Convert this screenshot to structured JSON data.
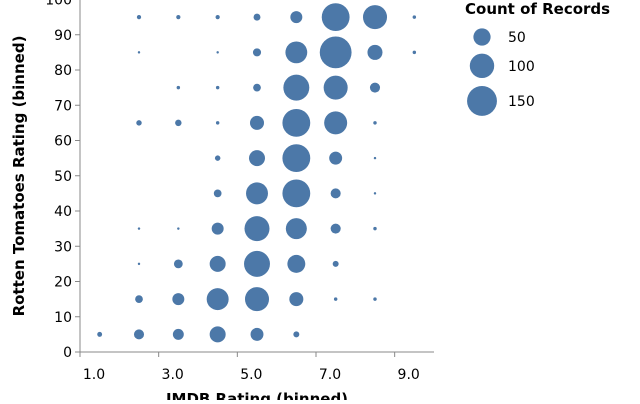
{
  "chart_data": {
    "type": "scatter",
    "x_label": "IMDB Rating (binned)",
    "y_label": "Rotten Tomatoes Rating (binned)",
    "size_label": "Count of Records",
    "color": "#4c78a8",
    "xlim": [
      1,
      10
    ],
    "ylim": [
      0,
      100
    ],
    "xticks": [
      {
        "value": 1,
        "label": "1.0"
      },
      {
        "value": 3,
        "label": "3.0"
      },
      {
        "value": 5,
        "label": "5.0"
      },
      {
        "value": 7,
        "label": "7.0"
      },
      {
        "value": 9,
        "label": "9.0"
      }
    ],
    "yticks": [
      0,
      10,
      20,
      30,
      40,
      50,
      60,
      70,
      80,
      90,
      100
    ],
    "size_legend": [
      50,
      100,
      150
    ],
    "x": [
      2.5,
      3.5,
      4.5,
      5.5,
      6.5,
      7.5,
      8.5,
      9.5,
      2.5,
      4.5,
      5.5,
      6.5,
      7.5,
      8.5,
      9.5,
      3.5,
      4.5,
      5.5,
      6.5,
      7.5,
      8.5,
      2.5,
      3.5,
      4.5,
      5.5,
      6.5,
      7.5,
      8.5,
      4.5,
      5.5,
      6.5,
      7.5,
      8.5,
      4.5,
      5.5,
      6.5,
      7.5,
      8.5,
      2.5,
      3.5,
      4.5,
      5.5,
      6.5,
      7.5,
      8.5,
      2.5,
      3.5,
      4.5,
      5.5,
      6.5,
      7.5,
      2.5,
      3.5,
      4.5,
      5.5,
      6.5,
      7.5,
      8.5,
      1.5,
      2.5,
      3.5,
      4.5,
      5.5,
      6.5
    ],
    "y": [
      95,
      95,
      95,
      95,
      95,
      95,
      95,
      95,
      85,
      85,
      85,
      85,
      85,
      85,
      85,
      75,
      75,
      75,
      75,
      75,
      75,
      65,
      65,
      65,
      65,
      65,
      65,
      65,
      55,
      55,
      55,
      55,
      55,
      45,
      45,
      45,
      45,
      45,
      35,
      35,
      35,
      35,
      35,
      35,
      35,
      25,
      25,
      25,
      25,
      25,
      25,
      15,
      15,
      15,
      15,
      15,
      15,
      15,
      5,
      5,
      5,
      5,
      5,
      5
    ],
    "size": [
      3,
      3,
      3,
      8,
      24,
      130,
      97,
      2,
      1,
      1,
      11,
      80,
      170,
      38,
      2,
      2,
      2,
      10,
      113,
      97,
      17,
      5,
      7,
      2,
      33,
      130,
      89,
      2,
      5,
      43,
      130,
      28,
      1,
      10,
      81,
      130,
      17,
      1,
      1,
      1,
      24,
      105,
      74,
      17,
      2,
      1,
      13,
      43,
      113,
      54,
      6,
      10,
      24,
      81,
      97,
      33,
      2,
      2,
      4,
      17,
      20,
      43,
      28,
      6
    ]
  }
}
